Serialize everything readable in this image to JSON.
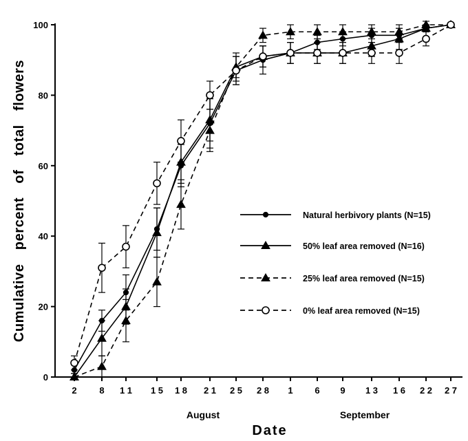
{
  "chart_data": {
    "type": "line",
    "xlabel": "Date",
    "ylabel": "Cumulative percent of total flowers",
    "x_categories": [
      "2",
      "8",
      "11",
      "15",
      "18",
      "21",
      "25",
      "28",
      "1",
      "6",
      "9",
      "13",
      "16",
      "22",
      "27"
    ],
    "x_tick_labels": [
      "2",
      "8",
      "1 1",
      "1 5",
      "1 8",
      "2 1",
      "2 5",
      "2 8",
      "1",
      "6",
      "9",
      "1 3",
      "1 6",
      "2 2",
      "2 7"
    ],
    "month_labels": [
      {
        "text": "August",
        "at_category": 5
      },
      {
        "text": "September",
        "at_category": 11
      }
    ],
    "ylim": [
      0,
      100
    ],
    "yticks": [
      0,
      20,
      40,
      60,
      80,
      100
    ],
    "grid": false,
    "legend_position": "center-right",
    "series": [
      {
        "name": "Natural herbivory plants (N=15)",
        "marker": "filled-circle",
        "line": "solid",
        "values": [
          2,
          16,
          24,
          42,
          60,
          72,
          87,
          90,
          92,
          95,
          96,
          97,
          97,
          99,
          100
        ],
        "errors": [
          2,
          3,
          5,
          6,
          6,
          7,
          4,
          4,
          3,
          2,
          2,
          2,
          2,
          1,
          0
        ]
      },
      {
        "name": "50% leaf area removed (N=16)",
        "marker": "filled-triangle",
        "line": "solid",
        "values": [
          0,
          11,
          20,
          41,
          61,
          73,
          88,
          91,
          92,
          92,
          92,
          94,
          96,
          99,
          100
        ],
        "errors": [
          1,
          5,
          5,
          7,
          6,
          6,
          4,
          3,
          3,
          3,
          3,
          3,
          3,
          1,
          0
        ]
      },
      {
        "name": "25% leaf area removed (N=15)",
        "marker": "filled-triangle",
        "line": "dashed",
        "values": [
          0,
          3,
          16,
          27,
          49,
          70,
          88,
          97,
          98,
          98,
          98,
          98,
          98,
          100,
          100
        ],
        "errors": [
          1,
          3,
          6,
          7,
          7,
          6,
          3,
          2,
          2,
          2,
          2,
          2,
          2,
          1,
          0
        ]
      },
      {
        "name": "0% leaf area removed (N=15)",
        "marker": "open-circle",
        "line": "dashed",
        "values": [
          4,
          31,
          37,
          55,
          67,
          80,
          87,
          91,
          92,
          92,
          92,
          92,
          92,
          96,
          100
        ],
        "errors": [
          2,
          7,
          6,
          6,
          6,
          4,
          4,
          3,
          3,
          3,
          3,
          3,
          3,
          2,
          0
        ]
      }
    ]
  }
}
